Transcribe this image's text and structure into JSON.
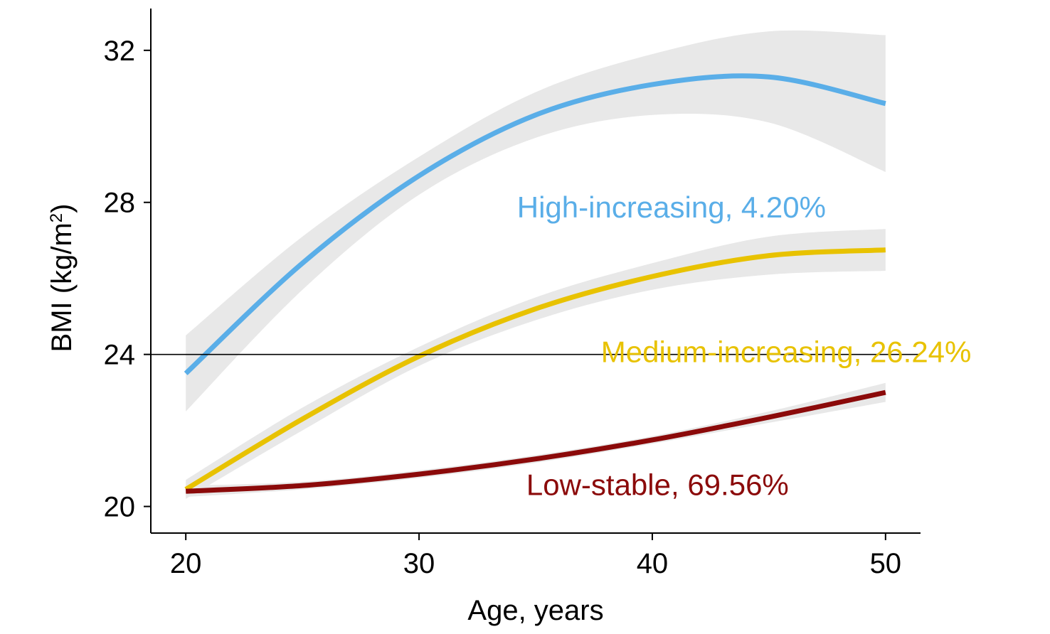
{
  "chart_data": {
    "type": "line",
    "title": "",
    "xlabel": "Age, years",
    "ylabel_main": "BMI (kg/m",
    "ylabel_sup": "2",
    "ylabel_close": ")",
    "xlim": [
      18.5,
      51.5
    ],
    "ylim": [
      19.3,
      33.1
    ],
    "xticks": [
      20,
      30,
      40,
      50
    ],
    "yticks": [
      20,
      24,
      28,
      32
    ],
    "reference_line_y": 24,
    "confidence_band_color": "#e8e8e8",
    "series": [
      {
        "name": "High-increasing, 4.20%",
        "color": "#5aaee8",
        "label_anchor": {
          "x": 34.2,
          "y": 27.6
        },
        "x": [
          20,
          25,
          30,
          35,
          40,
          45,
          50
        ],
        "y": [
          23.5,
          26.4,
          28.7,
          30.3,
          31.1,
          31.3,
          30.6
        ],
        "lower": [
          22.5,
          25.7,
          28.2,
          29.7,
          30.3,
          30.1,
          28.8
        ],
        "upper": [
          24.5,
          27.1,
          29.2,
          30.9,
          31.9,
          32.5,
          32.4
        ]
      },
      {
        "name": "Medium-increasing, 26.24%",
        "color": "#e8c200",
        "label_anchor": {
          "x": 37.8,
          "y": 23.8
        },
        "x": [
          20,
          25,
          30,
          35,
          40,
          45,
          50
        ],
        "y": [
          20.45,
          22.3,
          23.95,
          25.2,
          26.05,
          26.6,
          26.75
        ],
        "lower": [
          20.2,
          22.0,
          23.7,
          24.9,
          25.7,
          26.1,
          26.2
        ],
        "upper": [
          20.7,
          22.6,
          24.2,
          25.5,
          26.4,
          27.1,
          27.3
        ]
      },
      {
        "name": "Low-stable, 69.56%",
        "color": "#8b0a0a",
        "label_anchor": {
          "x": 34.6,
          "y": 20.3
        },
        "x": [
          20,
          25,
          30,
          35,
          40,
          45,
          50
        ],
        "y": [
          20.4,
          20.55,
          20.85,
          21.25,
          21.75,
          22.35,
          23.0
        ],
        "lower": [
          20.25,
          20.45,
          20.75,
          21.15,
          21.65,
          22.2,
          22.75
        ],
        "upper": [
          20.55,
          20.65,
          20.95,
          21.35,
          21.85,
          22.5,
          23.25
        ]
      }
    ]
  }
}
